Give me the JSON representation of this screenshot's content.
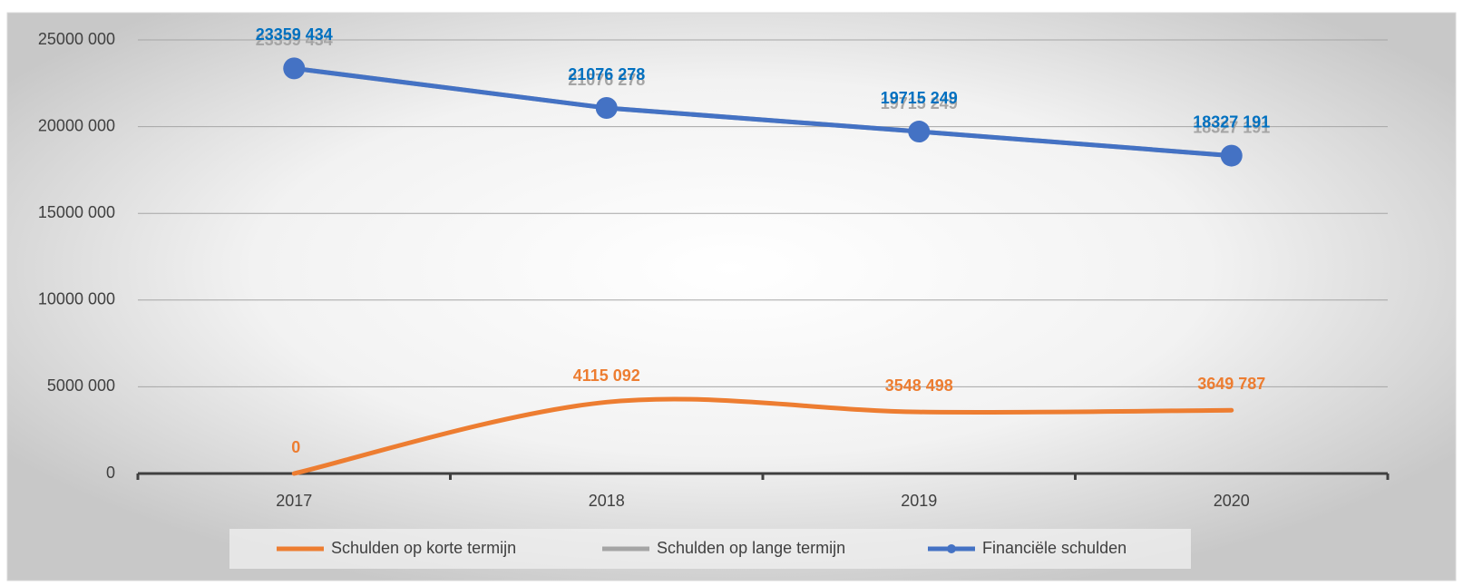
{
  "chart_data": {
    "type": "line",
    "categories": [
      "2017",
      "2018",
      "2019",
      "2020"
    ],
    "series": [
      {
        "name": "Schulden op korte termijn",
        "color": "#ed7d31",
        "smooth": true,
        "markers": false,
        "values": [
          0,
          4115092,
          3548498,
          3649787
        ],
        "value_labels": [
          "0",
          "4115 092",
          "3548 498",
          "3649 787"
        ]
      },
      {
        "name": "Schulden op lange termijn",
        "color": "#a5a5a5",
        "smooth": false,
        "markers": false,
        "values": [
          23359434,
          21076278,
          19715249,
          18327191
        ],
        "value_labels": [
          "23359 434",
          "21076 278",
          "19715 249",
          "18327 191"
        ]
      },
      {
        "name": "Financiële schulden",
        "color": "#4472c4",
        "label_color": "#0070c0",
        "smooth": false,
        "markers": true,
        "values": [
          23359434,
          21076278,
          19715249,
          18327191
        ],
        "value_labels": [
          "23359 434",
          "21076 278",
          "19715 249",
          "18327 191"
        ]
      }
    ],
    "ylim": [
      0,
      25000000
    ],
    "yticks": [
      0,
      {
        "value": 5000000,
        "label": "5000 000"
      },
      {
        "value": 10000000,
        "label": "10000 000"
      },
      {
        "value": 15000000,
        "label": "15000 000"
      },
      {
        "value": 20000000,
        "label": "20000 000"
      },
      {
        "value": 25000000,
        "label": "25000 000"
      }
    ],
    "grid": true,
    "legend": "bottom"
  }
}
